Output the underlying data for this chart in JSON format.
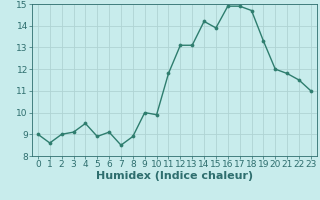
{
  "x": [
    0,
    1,
    2,
    3,
    4,
    5,
    6,
    7,
    8,
    9,
    10,
    11,
    12,
    13,
    14,
    15,
    16,
    17,
    18,
    19,
    20,
    21,
    22,
    23
  ],
  "y": [
    9.0,
    8.6,
    9.0,
    9.1,
    9.5,
    8.9,
    9.1,
    8.5,
    8.9,
    10.0,
    9.9,
    11.8,
    13.1,
    13.1,
    14.2,
    13.9,
    14.9,
    14.9,
    14.7,
    13.3,
    12.0,
    11.8,
    11.5,
    11.0
  ],
  "line_color": "#2e7d6e",
  "marker_color": "#2e7d6e",
  "bg_color": "#c8ecec",
  "grid_color": "#afd4d4",
  "xlabel": "Humidex (Indice chaleur)",
  "ylim": [
    8,
    15
  ],
  "xlim_min": -0.5,
  "xlim_max": 23.5,
  "yticks": [
    8,
    9,
    10,
    11,
    12,
    13,
    14,
    15
  ],
  "xticks": [
    0,
    1,
    2,
    3,
    4,
    5,
    6,
    7,
    8,
    9,
    10,
    11,
    12,
    13,
    14,
    15,
    16,
    17,
    18,
    19,
    20,
    21,
    22,
    23
  ],
  "font_color": "#2e6e6e",
  "tick_fontsize": 6.5,
  "xlabel_fontsize": 8.0,
  "linewidth": 1.0,
  "markersize": 2.2
}
